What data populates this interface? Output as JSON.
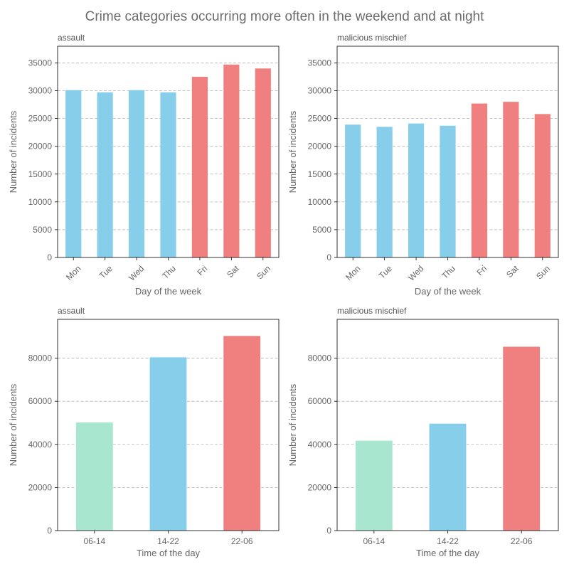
{
  "figure_title": "Crime categories occurring more often in the weekend and at night",
  "colors": {
    "weekday": "#87ceeb",
    "weekend": "#f08080",
    "morning": "#a8e6cf",
    "afternoon": "#87ceeb",
    "night": "#f08080"
  },
  "chart_data": [
    {
      "type": "bar",
      "title": "assault",
      "xlabel": "Day of the week",
      "ylabel": "Number of incidents",
      "categories": [
        "Mon",
        "Tue",
        "Wed",
        "Thu",
        "Fri",
        "Sat",
        "Sun"
      ],
      "values": [
        30100,
        29700,
        30100,
        29700,
        32500,
        34700,
        34000
      ],
      "bar_colors": [
        "weekday",
        "weekday",
        "weekday",
        "weekday",
        "weekend",
        "weekend",
        "weekend"
      ],
      "ylim": [
        0,
        38000
      ],
      "yticks": [
        0,
        5000,
        10000,
        15000,
        20000,
        25000,
        30000,
        35000
      ],
      "xtick_rotation": "45",
      "grid": "y"
    },
    {
      "type": "bar",
      "title": "malicious mischief",
      "xlabel": "Day of the week",
      "ylabel": "Number of incidents",
      "categories": [
        "Mon",
        "Tue",
        "Wed",
        "Thu",
        "Fri",
        "Sat",
        "Sun"
      ],
      "values": [
        23900,
        23500,
        24100,
        23700,
        27700,
        28000,
        25800
      ],
      "bar_colors": [
        "weekday",
        "weekday",
        "weekday",
        "weekday",
        "weekend",
        "weekend",
        "weekend"
      ],
      "ylim": [
        0,
        38000
      ],
      "yticks": [
        0,
        5000,
        10000,
        15000,
        20000,
        25000,
        30000,
        35000
      ],
      "xtick_rotation": "45",
      "grid": "y"
    },
    {
      "type": "bar",
      "title": "assault",
      "xlabel": "Time of the day",
      "ylabel": "Number of incidents",
      "categories": [
        "06-14",
        "14-22",
        "22-06"
      ],
      "values": [
        50200,
        80400,
        90300
      ],
      "bar_colors": [
        "morning",
        "afternoon",
        "night"
      ],
      "ylim": [
        0,
        98000
      ],
      "yticks": [
        0,
        20000,
        40000,
        60000,
        80000
      ],
      "xtick_rotation": "0",
      "grid": "y"
    },
    {
      "type": "bar",
      "title": "malicious mischief",
      "xlabel": "Time of the day",
      "ylabel": "Number of incidents",
      "categories": [
        "06-14",
        "14-22",
        "22-06"
      ],
      "values": [
        41700,
        49600,
        85300
      ],
      "bar_colors": [
        "morning",
        "afternoon",
        "night"
      ],
      "ylim": [
        0,
        98000
      ],
      "yticks": [
        0,
        20000,
        40000,
        60000,
        80000
      ],
      "xtick_rotation": "0",
      "grid": "y"
    }
  ]
}
